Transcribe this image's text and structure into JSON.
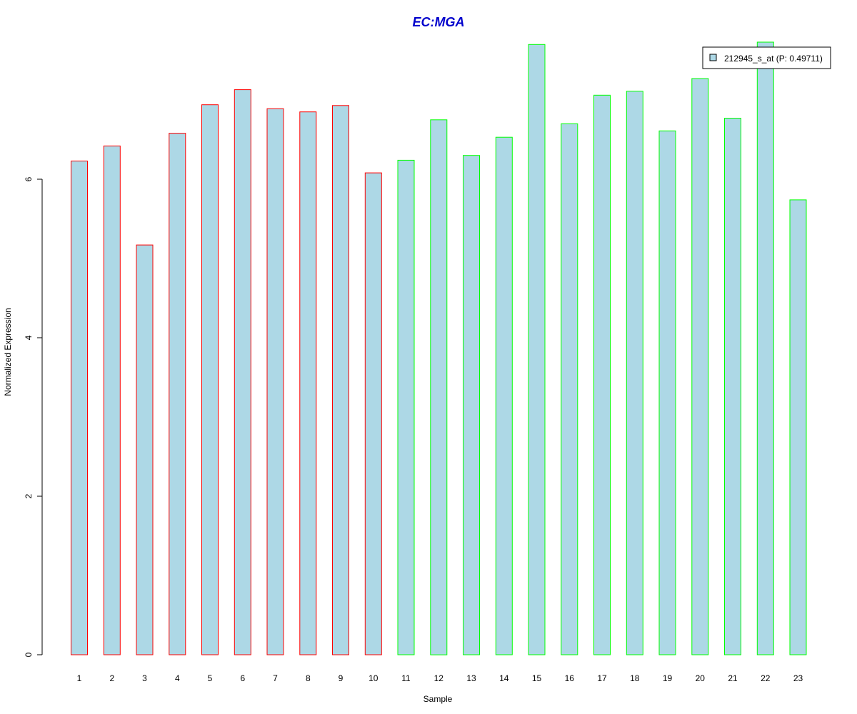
{
  "chart_data": {
    "type": "bar",
    "title": "EC:MGA",
    "title_color": "#0000CC",
    "xlabel": "Sample",
    "ylabel": "Normalized Expression",
    "ylim": [
      0,
      7.75
    ],
    "yticks": [
      0,
      2,
      4,
      6
    ],
    "categories": [
      "1",
      "2",
      "3",
      "4",
      "5",
      "6",
      "7",
      "8",
      "9",
      "10",
      "11",
      "12",
      "13",
      "14",
      "15",
      "16",
      "17",
      "18",
      "19",
      "20",
      "21",
      "22",
      "23"
    ],
    "series": [
      {
        "name": "212945_s_at (P: 0.49711)",
        "fill": "#ADD8E6",
        "values": [
          6.23,
          6.42,
          5.17,
          6.58,
          6.94,
          7.13,
          6.89,
          6.85,
          6.93,
          6.08,
          6.24,
          6.75,
          6.3,
          6.53,
          7.7,
          6.7,
          7.06,
          7.11,
          6.61,
          7.27,
          6.77,
          7.73,
          5.74
        ],
        "border_colors": [
          "#FF0000",
          "#FF0000",
          "#FF0000",
          "#FF0000",
          "#FF0000",
          "#FF0000",
          "#FF0000",
          "#FF0000",
          "#FF0000",
          "#FF0000",
          "#00FF00",
          "#00FF00",
          "#00FF00",
          "#00FF00",
          "#00FF00",
          "#00FF00",
          "#00FF00",
          "#00FF00",
          "#00FF00",
          "#00FF00",
          "#00FF00",
          "#00FF00",
          "#00FF00"
        ]
      }
    ],
    "grid": false,
    "legend_position": "top-right"
  }
}
